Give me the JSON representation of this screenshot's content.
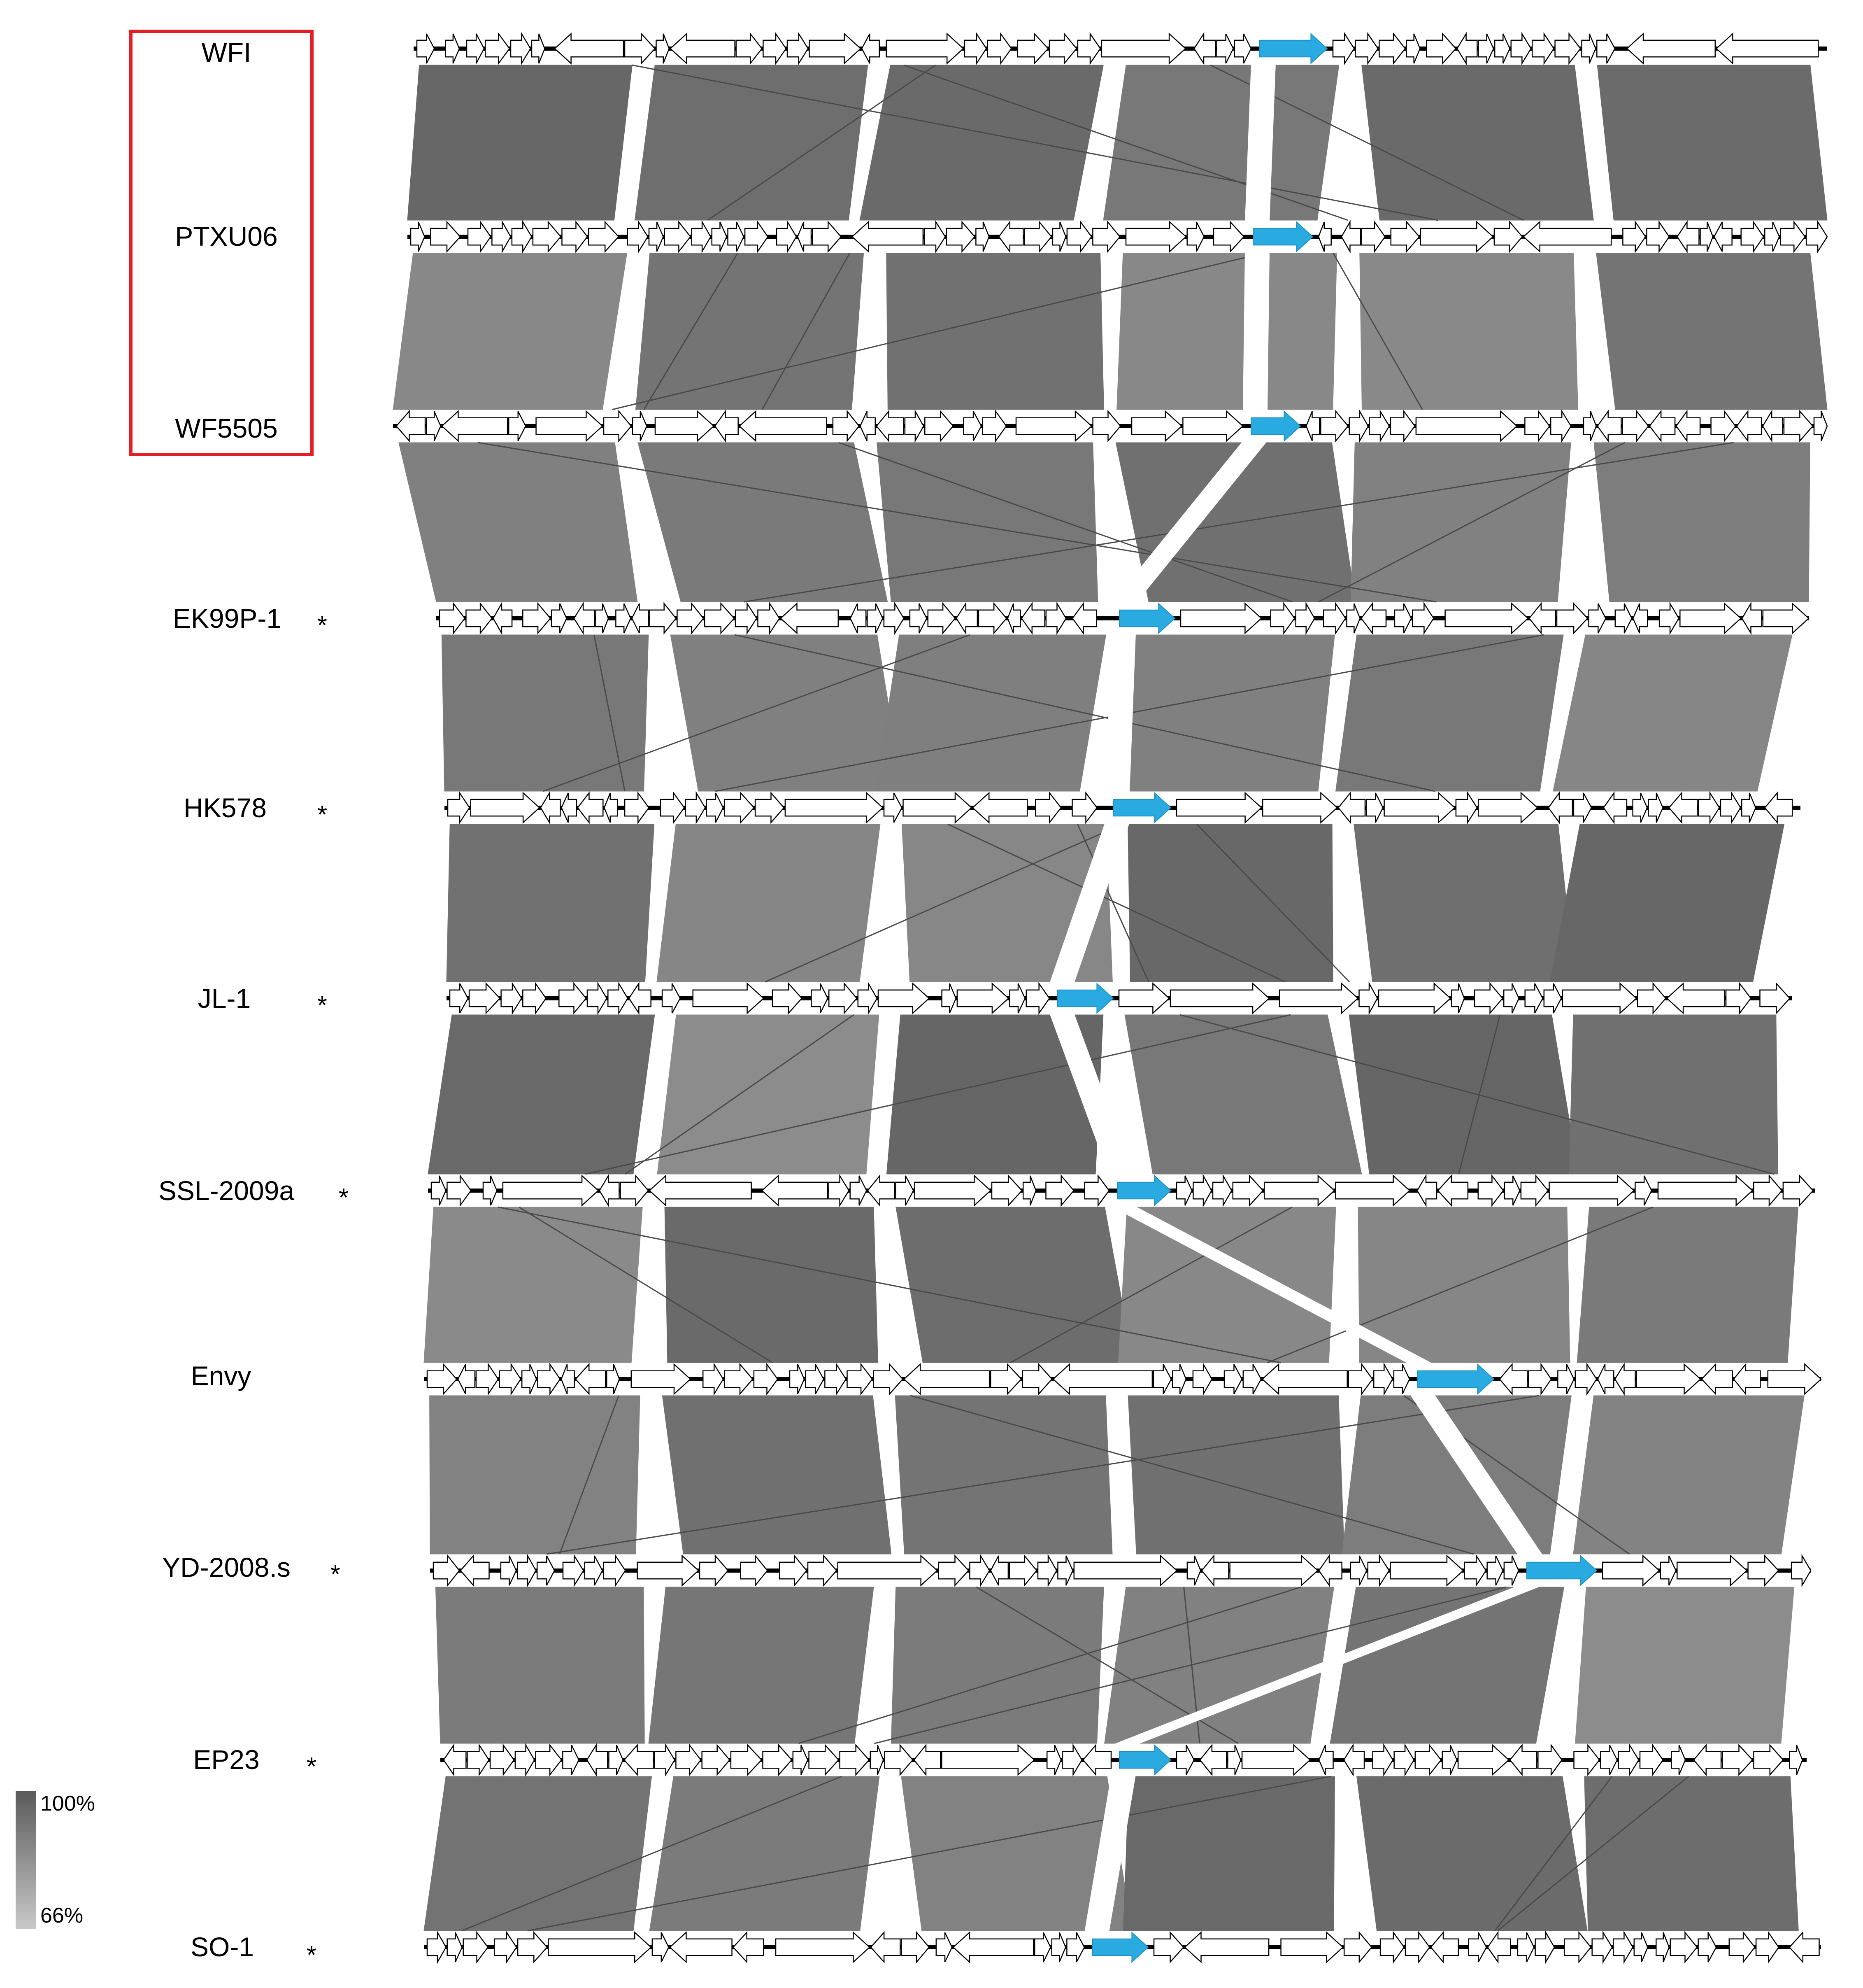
{
  "genomes": [
    {
      "name": "WFI",
      "star": "",
      "boxed": true
    },
    {
      "name": "PTXU06",
      "star": "",
      "boxed": true
    },
    {
      "name": "WF5505",
      "star": "",
      "boxed": true
    },
    {
      "name": "EK99P-1",
      "star": "*",
      "boxed": false
    },
    {
      "name": "HK578",
      "star": "*",
      "boxed": false
    },
    {
      "name": "JL-1",
      "star": "*",
      "boxed": false
    },
    {
      "name": "SSL-2009a",
      "star": "*",
      "boxed": false
    },
    {
      "name": "Envy",
      "star": "",
      "boxed": false
    },
    {
      "name": "YD-2008.s",
      "star": "*",
      "boxed": false
    },
    {
      "name": "EP23",
      "star": "*",
      "boxed": false
    },
    {
      "name": "SO-1",
      "star": "*",
      "boxed": false
    }
  ],
  "legend": {
    "label_max": "100%",
    "label_min": "66%",
    "color_max": "#5a5a5a",
    "color_min": "#c8c8c8"
  },
  "colors": {
    "highlight_gene": "#29abe2",
    "comparison_block": "#7a7a7a",
    "box_outline": "#e31e24",
    "backbone": "#000000"
  },
  "icons": {
    "gene": "outlined-arrow",
    "highlight_gene": "filled-blue-arrow"
  }
}
